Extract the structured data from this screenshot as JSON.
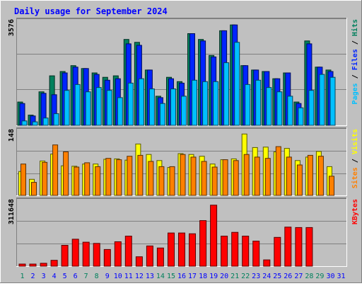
{
  "chart_data": {
    "title": "Daily usage for September 2024",
    "colors": {
      "hits": "#00805c",
      "files": "#0024ff",
      "pages": "#00c0ff",
      "visits": "#ffff00",
      "sites": "#ff8000",
      "kbytes": "#ff0000",
      "weekend_day": "#00805c",
      "weekday": "#0000ff",
      "background": "#c0c0c0",
      "title": "#0000ff"
    },
    "days": [
      "1",
      "2",
      "3",
      "4",
      "5",
      "6",
      "7",
      "8",
      "9",
      "10",
      "11",
      "12",
      "13",
      "14",
      "15",
      "16",
      "17",
      "18",
      "19",
      "20",
      "21",
      "22",
      "23",
      "24",
      "25",
      "26",
      "27",
      "28",
      "29",
      "30",
      "31"
    ],
    "weekend_days": [
      "1",
      "7",
      "8",
      "14",
      "15",
      "21",
      "22",
      "28",
      "29"
    ],
    "charts": [
      {
        "type": "bar",
        "name": "hits-files-pages",
        "y_tick_label": "3576",
        "ymax": 3576,
        "right_labels": [
          {
            "key": "pages",
            "text": "Pages"
          },
          {
            "key": "sep",
            "text": " / "
          },
          {
            "key": "files",
            "text": "Files"
          },
          {
            "key": "sep",
            "text": " / "
          },
          {
            "key": "hits",
            "text": "Hits"
          }
        ],
        "series": [
          {
            "name": "Hits",
            "color_key": "hits",
            "values": [
              800,
              350,
              1150,
              1700,
              1850,
              2050,
              1950,
              1800,
              1650,
              1700,
              2950,
              2850,
              1900,
              1000,
              1650,
              1500,
              3150,
              2950,
              2400,
              3250,
              3450,
              2050,
              1900,
              1850,
              1600,
              1800,
              800,
              2900,
              2000,
              1900,
              0
            ]
          },
          {
            "name": "Files",
            "color_key": "files",
            "values": [
              750,
              320,
              1100,
              1050,
              1800,
              2000,
              1950,
              1750,
              1550,
              1600,
              2800,
              2750,
              1900,
              950,
              1600,
              1450,
              3150,
              2900,
              2350,
              3250,
              3450,
              2050,
              1900,
              1850,
              1600,
              1800,
              750,
              2800,
              2000,
              1850,
              0
            ]
          },
          {
            "name": "Pages",
            "color_key": "pages",
            "values": [
              150,
              120,
              250,
              400,
              1200,
              1400,
              1150,
              1300,
              1200,
              950,
              1450,
              1600,
              1250,
              750,
              1250,
              1000,
              1550,
              1500,
              1500,
              2150,
              2850,
              1400,
              1550,
              1300,
              1150,
              1000,
              600,
              1200,
              1750,
              1650,
              0
            ]
          }
        ]
      },
      {
        "type": "bar",
        "name": "visits-sites",
        "y_tick_label": "148",
        "ymax": 148,
        "right_labels": [
          {
            "key": "sites",
            "text": "Sites"
          },
          {
            "key": "sep",
            "text": " / "
          },
          {
            "key": "visits",
            "text": "Visits"
          }
        ],
        "series": [
          {
            "name": "Visits",
            "color_key": "visits",
            "values": [
              55,
              37,
              79,
              95,
              68,
              67,
              72,
              72,
              83,
              84,
              81,
              118,
              94,
              80,
              64,
              96,
              94,
              90,
              72,
              82,
              84,
              141,
              110,
              111,
              100,
              108,
              80,
              88,
              101,
              66,
              0
            ]
          },
          {
            "name": "Sites",
            "color_key": "sites",
            "values": [
              72,
              30,
              76,
              116,
              100,
              65,
              75,
              66,
              85,
              82,
              90,
              92,
              78,
              66,
              66,
              94,
              88,
              78,
              65,
              82,
              80,
              94,
              88,
              85,
              112,
              88,
              70,
              92,
              90,
              44,
              0
            ]
          }
        ]
      },
      {
        "type": "bar",
        "name": "kbytes",
        "y_tick_label": "311648",
        "ymax": 311648,
        "right_labels": [
          {
            "key": "kbytes",
            "text": "KBytes"
          }
        ],
        "series": [
          {
            "name": "KBytes",
            "color_key": "kbytes",
            "values": [
              10000,
              10000,
              14000,
              28000,
              100000,
              129000,
              115000,
              109000,
              80000,
              117000,
              144000,
              45000,
              97000,
              87000,
              159000,
              159000,
              155000,
              218000,
              292000,
              144000,
              162000,
              144000,
              120000,
              30000,
              138000,
              187000,
              185000,
              185000,
              0,
              0,
              0
            ]
          }
        ]
      }
    ]
  }
}
